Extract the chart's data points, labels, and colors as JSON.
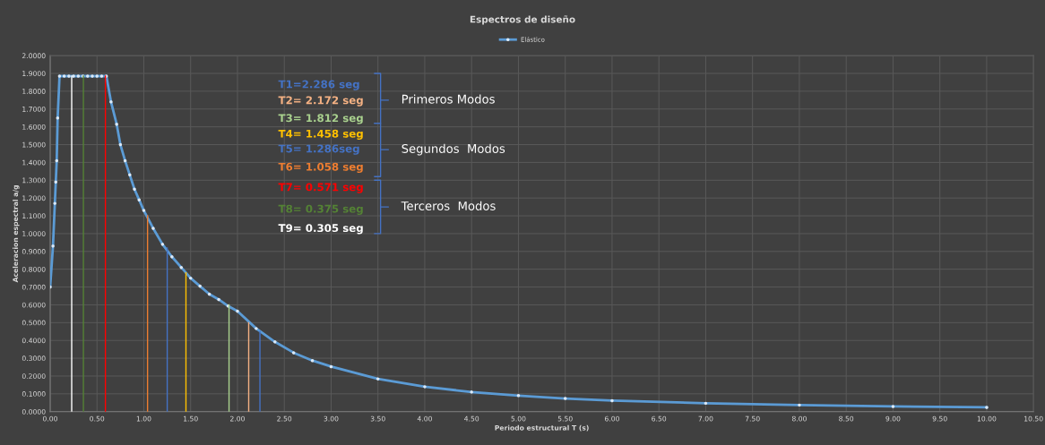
{
  "chart_data": {
    "type": "line",
    "title": "Espectros de diseño",
    "xlabel": "Periodo estructural T (s)",
    "ylabel": "Aceleracion espectral a/g",
    "xlim": [
      0,
      10.5
    ],
    "ylim": [
      0,
      2.0
    ],
    "xticks": [
      {
        "value": 0,
        "label": "0.00"
      },
      {
        "value": 0.5,
        "label": "0.50"
      },
      {
        "value": 1,
        "label": "1.00"
      },
      {
        "value": 1.5,
        "label": "1.50"
      },
      {
        "value": 2,
        "label": "2.00"
      },
      {
        "value": 2.5,
        "label": "2.50"
      },
      {
        "value": 3,
        "label": "3.00"
      },
      {
        "value": 3.5,
        "label": "3.50"
      },
      {
        "value": 4,
        "label": "4.00"
      },
      {
        "value": 4.5,
        "label": "4.50"
      },
      {
        "value": 5,
        "label": "5.00"
      },
      {
        "value": 5.5,
        "label": "5.50"
      },
      {
        "value": 6,
        "label": "6.00"
      },
      {
        "value": 6.5,
        "label": "6.50"
      },
      {
        "value": 7,
        "label": "7.00"
      },
      {
        "value": 7.5,
        "label": "7.50"
      },
      {
        "value": 8,
        "label": "8.00"
      },
      {
        "value": 8.5,
        "label": "8.50"
      },
      {
        "value": 9,
        "label": "9.00"
      },
      {
        "value": 9.5,
        "label": "9.50"
      },
      {
        "value": 10,
        "label": "10.00"
      },
      {
        "value": 10.5,
        "label": "10.50"
      }
    ],
    "yticks": [
      {
        "value": 0,
        "label": "0.0000"
      },
      {
        "value": 0.1,
        "label": "0.1000"
      },
      {
        "value": 0.2,
        "label": "0.2000"
      },
      {
        "value": 0.3,
        "label": "0.3000"
      },
      {
        "value": 0.4,
        "label": "0.4000"
      },
      {
        "value": 0.5,
        "label": "0.5000"
      },
      {
        "value": 0.6,
        "label": "0.6000"
      },
      {
        "value": 0.7,
        "label": "0.7000"
      },
      {
        "value": 0.8,
        "label": "0.8000"
      },
      {
        "value": 0.9,
        "label": "0.9000"
      },
      {
        "value": 1.0,
        "label": "1.0000"
      },
      {
        "value": 1.1,
        "label": "1.1000"
      },
      {
        "value": 1.2,
        "label": "1.2000"
      },
      {
        "value": 1.3,
        "label": "1.3000"
      },
      {
        "value": 1.4,
        "label": "1.4000"
      },
      {
        "value": 1.5,
        "label": "1.5000"
      },
      {
        "value": 1.6,
        "label": "1.6000"
      },
      {
        "value": 1.7,
        "label": "1.7000"
      },
      {
        "value": 1.8,
        "label": "1.8000"
      },
      {
        "value": 1.9,
        "label": "1.9000"
      },
      {
        "value": 2.0,
        "label": "2.0000"
      }
    ],
    "grid": true,
    "legend": "top",
    "series": [
      {
        "name": "Elástico",
        "color": "#5b9bd5",
        "marker": "circle",
        "x": [
          0,
          0.03,
          0.05,
          0.06,
          0.07,
          0.08,
          0.1,
          0.15,
          0.2,
          0.25,
          0.3,
          0.35,
          0.4,
          0.45,
          0.5,
          0.55,
          0.6,
          0.65,
          0.71,
          0.75,
          0.8,
          0.85,
          0.9,
          0.95,
          1.0,
          1.1,
          1.2,
          1.3,
          1.4,
          1.5,
          1.6,
          1.7,
          1.8,
          1.9,
          2.0,
          2.2,
          2.4,
          2.6,
          2.8,
          3.0,
          3.5,
          4.0,
          4.5,
          5.0,
          5.5,
          6.0,
          7.0,
          8.0,
          9.0,
          10.0
        ],
        "values": [
          0.7,
          0.93,
          1.17,
          1.29,
          1.41,
          1.65,
          1.885,
          1.885,
          1.885,
          1.885,
          1.885,
          1.885,
          1.885,
          1.885,
          1.885,
          1.885,
          1.885,
          1.74,
          1.615,
          1.5,
          1.41,
          1.33,
          1.25,
          1.19,
          1.13,
          1.03,
          0.94,
          0.87,
          0.81,
          0.75,
          0.705,
          0.66,
          0.63,
          0.593,
          0.565,
          0.467,
          0.392,
          0.331,
          0.287,
          0.253,
          0.184,
          0.14,
          0.11,
          0.09,
          0.074,
          0.062,
          0.047,
          0.037,
          0.029,
          0.024
        ]
      },
      {
        "color": "#4472c4",
        "x": [
          2.24,
          2.24
        ],
        "values": [
          0,
          0.45
        ]
      },
      {
        "color": "#f4b183",
        "x": [
          2.12,
          2.12
        ],
        "values": [
          0,
          0.5
        ]
      },
      {
        "color": "#a9d18e",
        "x": [
          1.91,
          1.91
        ],
        "values": [
          0,
          0.6
        ]
      },
      {
        "color": "#ffc000",
        "x": [
          1.45,
          1.45
        ],
        "values": [
          0,
          0.78
        ]
      },
      {
        "color": "#4472c4",
        "x": [
          1.25,
          1.25
        ],
        "values": [
          0,
          0.92
        ]
      },
      {
        "color": "#ed7d31",
        "x": [
          1.04,
          1.04
        ],
        "values": [
          0,
          1.1
        ]
      },
      {
        "color": "#ff0000",
        "x": [
          0.59,
          0.59
        ],
        "values": [
          0,
          1.885
        ]
      },
      {
        "color": "#548235",
        "x": [
          0.355,
          0.355
        ],
        "values": [
          0,
          1.885
        ]
      },
      {
        "color": "#ffffff",
        "x": [
          0.23,
          0.23
        ],
        "values": [
          0,
          1.885
        ]
      }
    ],
    "annotations": [
      "T1=2.286 seg",
      "T2= 2.172 seg",
      "T3= 1.812 seg",
      "T4= 1.458 seg",
      "T5= 1.286seg",
      "T6= 1.058 seg",
      "T7= 0.571 seg",
      "T8= 0.375 seg",
      "T9= 0.305 seg",
      "Primeros Modos",
      "Segundos  Modos",
      "Terceros  Modos"
    ]
  }
}
